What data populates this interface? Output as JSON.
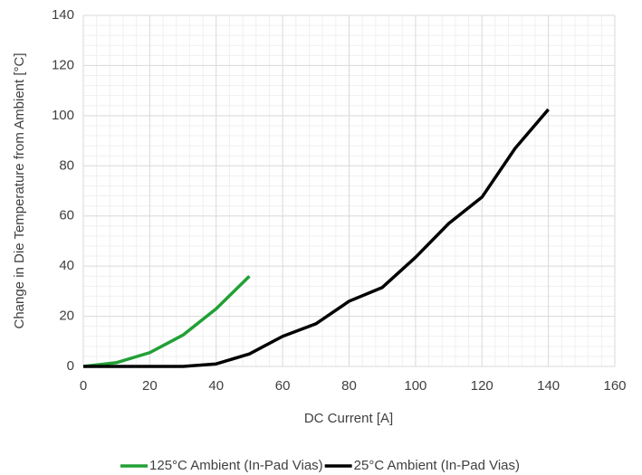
{
  "chart_data": {
    "type": "line",
    "xlabel": "DC Current [A]",
    "ylabel": "Change in Die Temperature from Ambient [°C]",
    "xlim": [
      0,
      160
    ],
    "xticks": [
      0,
      20,
      40,
      60,
      80,
      100,
      120,
      140,
      160
    ],
    "ylim": [
      0,
      140
    ],
    "yticks": [
      0,
      20,
      40,
      60,
      80,
      100,
      120,
      140
    ],
    "grid": true,
    "legend": "bottom",
    "series": [
      {
        "name": "125°C Ambient (In-Pad Vias)",
        "color": "#22a035",
        "x": [
          0,
          10,
          20,
          30,
          40,
          50
        ],
        "values": [
          0,
          1.5,
          5.5,
          12.5,
          23,
          36
        ]
      },
      {
        "name": "25°C Ambient (In-Pad Vias)",
        "color": "#000000",
        "x": [
          0,
          10,
          20,
          30,
          40,
          50,
          60,
          70,
          80,
          90,
          100,
          110,
          120,
          130,
          140
        ],
        "values": [
          0,
          0,
          0,
          0,
          1,
          5,
          12,
          17,
          26,
          31.5,
          43.5,
          57,
          67.5,
          87,
          102.5
        ]
      }
    ]
  }
}
